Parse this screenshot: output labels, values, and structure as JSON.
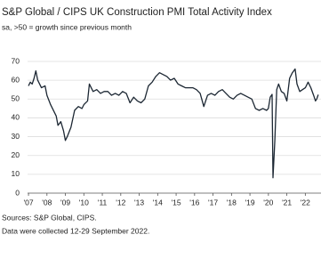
{
  "chart_data": {
    "type": "line",
    "title": "S&P Global / CIPS UK Construction PMI Total Activity Index",
    "subtitle": "sa, >50 = growth since previous month",
    "notes": [
      "Sources: S&P Global, CIPS.",
      "Data were collected 12-29 September 2022."
    ],
    "x": [
      2007.0,
      2007.1,
      2007.2,
      2007.3,
      2007.4,
      2007.5,
      2007.7,
      2007.9,
      2008.0,
      2008.2,
      2008.4,
      2008.5,
      2008.6,
      2008.75,
      2008.9,
      2009.0,
      2009.1,
      2009.3,
      2009.5,
      2009.7,
      2009.9,
      2010.0,
      2010.2,
      2010.3,
      2010.5,
      2010.7,
      2010.9,
      2011.1,
      2011.3,
      2011.5,
      2011.7,
      2011.9,
      2012.1,
      2012.3,
      2012.5,
      2012.7,
      2012.9,
      2013.1,
      2013.3,
      2013.5,
      2013.7,
      2013.9,
      2014.1,
      2014.3,
      2014.5,
      2014.7,
      2014.9,
      2015.1,
      2015.3,
      2015.5,
      2015.7,
      2015.9,
      2016.1,
      2016.3,
      2016.5,
      2016.7,
      2016.9,
      2017.1,
      2017.3,
      2017.5,
      2017.7,
      2017.9,
      2018.1,
      2018.3,
      2018.5,
      2018.7,
      2018.9,
      2019.1,
      2019.3,
      2019.5,
      2019.7,
      2019.9,
      2020.0,
      2020.1,
      2020.2,
      2020.25,
      2020.35,
      2020.45,
      2020.55,
      2020.7,
      2020.85,
      2021.0,
      2021.15,
      2021.3,
      2021.45,
      2021.55,
      2021.7,
      2021.85,
      2022.0,
      2022.15,
      2022.3,
      2022.45,
      2022.55,
      2022.62,
      2022.7
    ],
    "series": [
      {
        "color": "#1c2733",
        "values": [
          57,
          59,
          58,
          61,
          65,
          60,
          56,
          57,
          52,
          47,
          43,
          41,
          36,
          38,
          33,
          28,
          30,
          35,
          44,
          46,
          45,
          47,
          49,
          58,
          54,
          55,
          53,
          54,
          54,
          52,
          53,
          52,
          54,
          53,
          48,
          51,
          49,
          48,
          50,
          57,
          59,
          62,
          64,
          63,
          62,
          60,
          61,
          58,
          57,
          56,
          56,
          56,
          55,
          53,
          46,
          52,
          53,
          52,
          54,
          55,
          53,
          51,
          50,
          52,
          53,
          52,
          51,
          50,
          45,
          44,
          45,
          44,
          45,
          51,
          52.5,
          8.2,
          28,
          55,
          58,
          54,
          53,
          49,
          61,
          64,
          66,
          58,
          54,
          55,
          56,
          59,
          56,
          52,
          49,
          50,
          52.3
        ]
      }
    ],
    "xlim": [
      2006.95,
      2022.85
    ],
    "xticks": [
      {
        "value": 2007,
        "label": "'07"
      },
      {
        "value": 2008,
        "label": "'08"
      },
      {
        "value": 2009,
        "label": "'09"
      },
      {
        "value": 2010,
        "label": "'10"
      },
      {
        "value": 2011,
        "label": "'11"
      },
      {
        "value": 2012,
        "label": "'12"
      },
      {
        "value": 2013,
        "label": "'13"
      },
      {
        "value": 2014,
        "label": "'14"
      },
      {
        "value": 2015,
        "label": "'15"
      },
      {
        "value": 2016,
        "label": "'16"
      },
      {
        "value": 2017,
        "label": "'17"
      },
      {
        "value": 2018,
        "label": "'18"
      },
      {
        "value": 2019,
        "label": "'19"
      },
      {
        "value": 2020,
        "label": "'20"
      },
      {
        "value": 2021,
        "label": "'21"
      },
      {
        "value": 2022,
        "label": "'22"
      }
    ],
    "ylim": [
      0,
      70
    ],
    "yticks": [
      0,
      10,
      20,
      30,
      40,
      50,
      60,
      70
    ],
    "grid": true
  }
}
